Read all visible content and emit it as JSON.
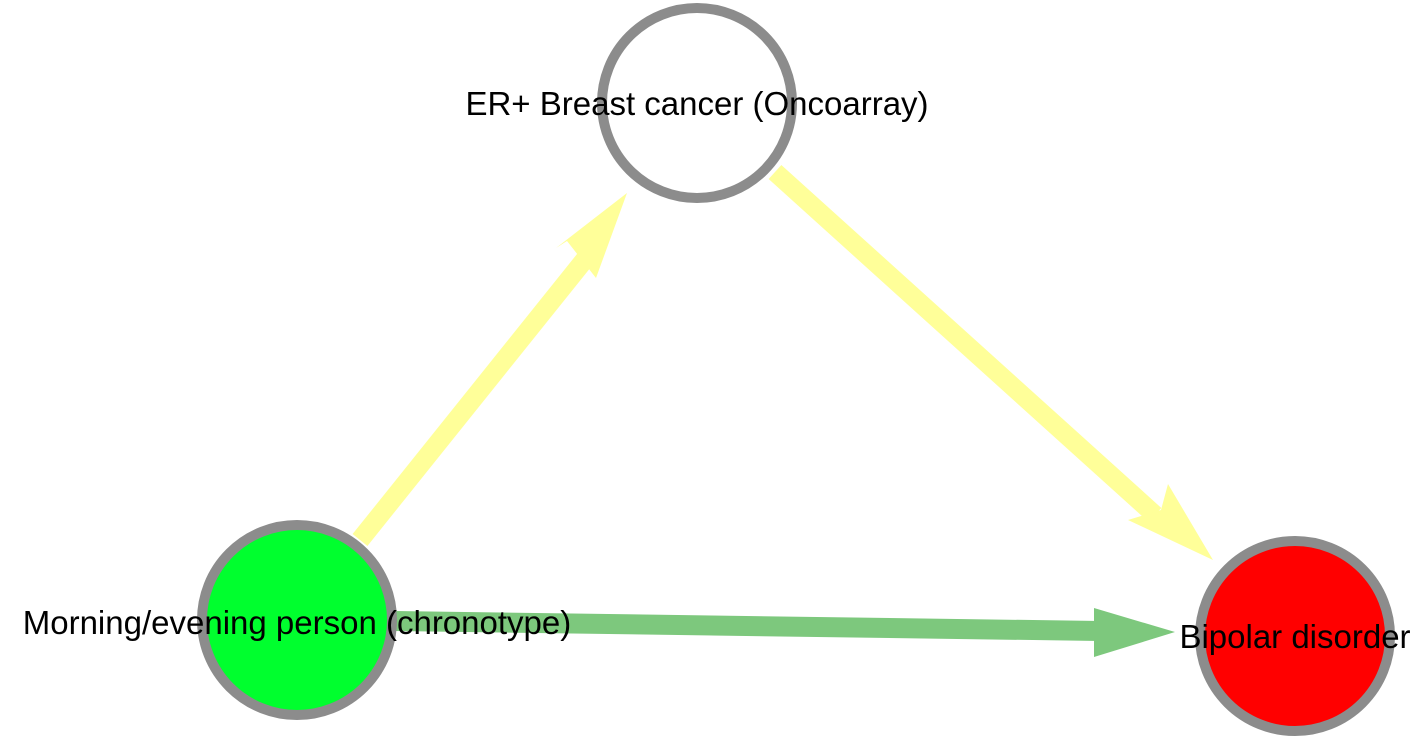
{
  "nodes": {
    "er_breast_cancer": {
      "label": "ER+ Breast cancer (Oncoarray)",
      "fill": "#ffffff",
      "stroke": "#8c8c8c"
    },
    "chronotype": {
      "label": "Morning/evening person (chronotype)",
      "fill": "#00ff2e",
      "stroke": "#8c8c8c"
    },
    "bipolar": {
      "label": "Bipolar disorder",
      "fill": "#ff0000",
      "stroke": "#8c8c8c"
    }
  },
  "edges": [
    {
      "from": "chronotype",
      "to": "er_breast_cancer",
      "color": "#ffff99"
    },
    {
      "from": "er_breast_cancer",
      "to": "bipolar",
      "color": "#ffff99"
    },
    {
      "from": "chronotype",
      "to": "bipolar",
      "color": "#7dc87d"
    }
  ]
}
